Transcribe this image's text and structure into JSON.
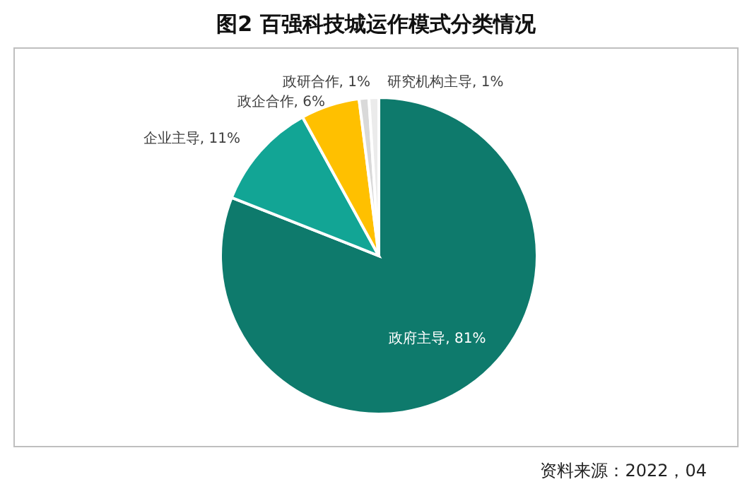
{
  "chart_data": {
    "type": "pie",
    "title": "图2  百强科技城运作模式分类情况",
    "categories": [
      "政府主导",
      "企业主导",
      "政企合作",
      "政研合作",
      "研究机构主导"
    ],
    "values": [
      81,
      11,
      6,
      1,
      1
    ],
    "colors": [
      "#0e7a6c",
      "#12a595",
      "#ffc000",
      "#d9d9d9",
      "#ebebeb"
    ],
    "value_labels": [
      "81%",
      "11%",
      "6%",
      "1%",
      "1%"
    ],
    "annotations": [
      "资料来源：2022，04"
    ]
  }
}
